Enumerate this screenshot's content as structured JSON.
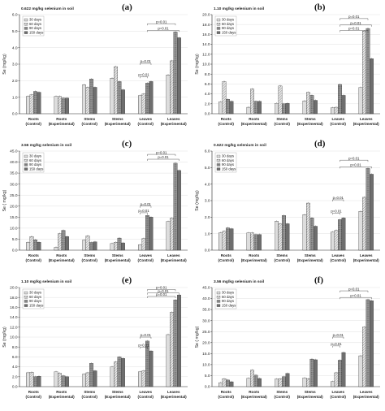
{
  "series_names": [
    "30 days",
    "60 days",
    "90 days",
    "150 days"
  ],
  "colors": {
    "s1": "#cfcfcf",
    "s2": "#e6e6e6",
    "s3": "#9a9a9a",
    "s4": "#6e6e6e",
    "axis": "#222222",
    "grid": "#d9d9d9",
    "bracket": "#333333"
  },
  "chart_data": [
    {
      "panel_label": "(a)",
      "type": "bar",
      "title": "0.622 mg/kg selenium in soil",
      "ylabel": "Se (mg/kg)",
      "ylim": [
        0,
        6
      ],
      "yticks": [
        0.0,
        1.0,
        2.0,
        3.0,
        4.0,
        5.0,
        6.0
      ],
      "ytick_labels": [
        "0.0",
        "1.0",
        "2.0",
        "3.0",
        "4.0",
        "5.0",
        "6.0"
      ],
      "grid": true,
      "legend": "top-left",
      "categories": [
        [
          "Roots",
          "(Control)"
        ],
        [
          "Roots",
          "(Experimental)"
        ],
        [
          "Stems",
          "(Control)"
        ],
        [
          "Stems",
          "(Experimental)"
        ],
        [
          "Leaves",
          "(Control)"
        ],
        [
          "Leaves",
          "(Experimental)"
        ]
      ],
      "series": [
        {
          "name": "30 days",
          "values": [
            1.05,
            1.05,
            1.75,
            2.15,
            1.1,
            2.35
          ]
        },
        {
          "name": "60 days",
          "values": [
            1.15,
            1.05,
            1.6,
            2.85,
            1.2,
            3.2
          ]
        },
        {
          "name": "90 days",
          "values": [
            1.35,
            0.95,
            2.1,
            1.95,
            1.85,
            4.95
          ]
        },
        {
          "name": "150 days",
          "values": [
            1.3,
            0.95,
            1.6,
            1.45,
            1.95,
            4.6
          ]
        }
      ],
      "brackets": [
        {
          "from": 4,
          "to": 5,
          "label": "p=0.01",
          "y": 5.45
        },
        {
          "from": 4,
          "to": 5,
          "label": "p=0.01",
          "y": 5.05
        },
        {
          "from": 4,
          "to": 4,
          "span": [
            0,
            3
          ],
          "label": "p=0.01",
          "y": 3.05
        },
        {
          "from": 4,
          "to": 4,
          "span": [
            0,
            2
          ],
          "label": "p=0.01",
          "y": 2.25
        }
      ]
    },
    {
      "panel_label": "(b)",
      "type": "bar",
      "title": "1.10 mg/kg selenium in soil",
      "ylabel": "Se (mg/kg)",
      "ylim": [
        0,
        20
      ],
      "yticks": [
        0,
        2,
        4,
        6,
        8,
        10,
        12,
        14,
        16,
        18,
        20
      ],
      "ytick_labels": [
        "0.0",
        "2.0",
        "4.0",
        "6.0",
        "8.0",
        "10.0",
        "12.0",
        "14.0",
        "16.0",
        "18.0",
        "20.0"
      ],
      "grid": true,
      "legend": "top-left",
      "categories": [
        [
          "Roots",
          "(Control)"
        ],
        [
          "Roots",
          "(Experimental)"
        ],
        [
          "Stems",
          "(Control)"
        ],
        [
          "Stems",
          "(Experimental)"
        ],
        [
          "Leaves",
          "(Control)"
        ],
        [
          "Leaves",
          "(Experimental)"
        ]
      ],
      "series": [
        {
          "name": "30 days",
          "values": [
            2.4,
            1.3,
            2.1,
            2.6,
            1.2,
            5.3
          ]
        },
        {
          "name": "60 days",
          "values": [
            6.5,
            5.0,
            5.6,
            4.3,
            1.3,
            16.7
          ]
        },
        {
          "name": "90 days",
          "values": [
            2.9,
            2.5,
            2.0,
            3.7,
            5.9,
            17.2
          ]
        },
        {
          "name": "150 days",
          "values": [
            2.5,
            2.5,
            2.1,
            2.7,
            3.7,
            11.1
          ]
        }
      ],
      "brackets": [
        {
          "from": 4,
          "to": 5,
          "label": "p=0.01",
          "y": 19.2
        },
        {
          "from": 4,
          "to": 5,
          "label": "p=0.01",
          "y": 17.9
        },
        {
          "from": 4,
          "to": 5,
          "label": "p=0.01",
          "y": 16.8
        }
      ]
    },
    {
      "panel_label": "(c)",
      "type": "bar",
      "title": "3.56 mg/kg selenium in soil",
      "ylabel": "Se ( mg/kg)",
      "ylim": [
        0,
        45
      ],
      "yticks": [
        0,
        5,
        10,
        15,
        20,
        25,
        30,
        35,
        40,
        45
      ],
      "ytick_labels": [
        "0.0",
        "5.0",
        "10.0",
        "15.0",
        "20.0",
        "25.0",
        "30.0",
        "35.0",
        "40.0",
        "45.0"
      ],
      "grid": true,
      "legend": "top-left",
      "categories": [
        [
          "Roots",
          "(Control)"
        ],
        [
          "Roots",
          "(Experimental)"
        ],
        [
          "Stems",
          "(Control)"
        ],
        [
          "Stems",
          "(Experimental)"
        ],
        [
          "Leaves",
          "(Control)"
        ],
        [
          "Leaves",
          "(Experimental)"
        ]
      ],
      "series": [
        {
          "name": "30 days",
          "values": [
            3.5,
            1.3,
            4.5,
            3.0,
            2.5,
            13.0
          ]
        },
        {
          "name": "60 days",
          "values": [
            6.2,
            7.5,
            6.5,
            3.6,
            5.3,
            14.5
          ]
        },
        {
          "name": "90 days",
          "values": [
            4.7,
            9.0,
            3.5,
            5.5,
            15.8,
            39.5
          ]
        },
        {
          "name": "150 days",
          "values": [
            3.6,
            6.2,
            3.8,
            3.3,
            15.0,
            36.2
          ]
        }
      ],
      "brackets": [
        {
          "from": 4,
          "to": 5,
          "label": "p=0.01",
          "y": 43.5
        },
        {
          "from": 4,
          "to": 5,
          "label": "p=0.01",
          "y": 41.3
        },
        {
          "from": 4,
          "to": 4,
          "span": [
            0,
            3
          ],
          "label": "p=0.01",
          "y": 20.0
        },
        {
          "from": 4,
          "to": 4,
          "span": [
            0,
            2
          ],
          "label": "p=0.01",
          "y": 17.0
        }
      ]
    },
    {
      "panel_label": "(d)",
      "type": "bar",
      "title": "0.622 mg/kg selenium in soil",
      "ylabel": "Se (mg/kg)",
      "ylim": [
        0,
        6
      ],
      "yticks": [
        0.0,
        1.0,
        2.0,
        3.0,
        4.0,
        5.0,
        6.0
      ],
      "ytick_labels": [
        "0.0",
        "1.0",
        "2.0",
        "3.0",
        "4.0",
        "5.0",
        "6.0"
      ],
      "grid": true,
      "legend": "top-left",
      "categories": [
        [
          "Roots",
          "(Control)"
        ],
        [
          "Roots",
          "(Experimental)"
        ],
        [
          "Stems",
          "(Control)"
        ],
        [
          "Stems",
          "(Experimental)"
        ],
        [
          "Leaves",
          "(Control)"
        ],
        [
          "Leaves",
          "(Experimental)"
        ]
      ],
      "series": [
        {
          "name": "30 days",
          "values": [
            1.05,
            1.05,
            1.75,
            2.15,
            1.1,
            2.35
          ]
        },
        {
          "name": "60 days",
          "values": [
            1.15,
            1.05,
            1.6,
            2.85,
            1.2,
            3.2
          ]
        },
        {
          "name": "90 days",
          "values": [
            1.35,
            0.95,
            2.1,
            1.95,
            1.85,
            4.95
          ]
        },
        {
          "name": "150 days",
          "values": [
            1.3,
            0.95,
            1.6,
            1.45,
            1.95,
            4.6
          ]
        }
      ],
      "brackets": [
        {
          "from": 4,
          "to": 5,
          "label": "p=0.01",
          "y": 5.45
        },
        {
          "from": 4,
          "to": 5,
          "label": "p=0.01",
          "y": 5.05
        },
        {
          "from": 4,
          "to": 4,
          "span": [
            0,
            3
          ],
          "label": "p=0.01",
          "y": 3.05
        },
        {
          "from": 4,
          "to": 4,
          "span": [
            0,
            2
          ],
          "label": "p=0.01",
          "y": 2.25
        }
      ]
    },
    {
      "panel_label": "(e)",
      "type": "bar",
      "title": "1.10 mg/kg selenium in soil",
      "ylabel": "Se (mg/kg)",
      "ylim": [
        0,
        20
      ],
      "yticks": [
        0,
        2,
        4,
        6,
        8,
        10,
        12,
        14,
        16,
        18,
        20
      ],
      "ytick_labels": [
        "0.0",
        "2.0",
        "4.0",
        "6.0",
        "8.0",
        "10.0",
        "12.0",
        "14.0",
        "16.0",
        "18.0",
        "20.0"
      ],
      "grid": true,
      "legend": "top-left",
      "categories": [
        [
          "Roots",
          "(Control)"
        ],
        [
          "Roots",
          "(Experimental)"
        ],
        [
          "Stems",
          "(Control)"
        ],
        [
          "Stems",
          "(Experimental)"
        ],
        [
          "Leaves",
          "(Control)"
        ],
        [
          "Leaves",
          "(Experimental)"
        ]
      ],
      "series": [
        {
          "name": "30 days",
          "values": [
            2.8,
            3.0,
            2.5,
            4.0,
            3.0,
            10.5
          ]
        },
        {
          "name": "60 days",
          "values": [
            2.9,
            2.7,
            2.8,
            5.0,
            3.2,
            15.0
          ]
        },
        {
          "name": "90 days",
          "values": [
            2.0,
            2.2,
            4.7,
            6.0,
            9.2,
            17.5
          ]
        },
        {
          "name": "150 days",
          "values": [
            2.1,
            2.0,
            3.2,
            5.7,
            7.2,
            18.5
          ]
        }
      ],
      "brackets": [
        {
          "from": 4,
          "to": 5,
          "label": "p=0.01",
          "y": 19.6
        },
        {
          "from": 4,
          "to": 5,
          "label": "p=0.01",
          "y": 18.9
        },
        {
          "from": 4,
          "to": 5,
          "label": "p=0.01",
          "y": 18.2
        },
        {
          "from": 4,
          "to": 4,
          "span": [
            0,
            3
          ],
          "label": "p=0.01",
          "y": 10.0
        },
        {
          "from": 4,
          "to": 4,
          "span": [
            0,
            2
          ],
          "label": "p=0.01",
          "y": 8.0
        }
      ]
    },
    {
      "panel_label": "(f)",
      "type": "bar",
      "title": "3.56 mg/kg selenium in soil",
      "ylabel": "Se ( mg/kg)",
      "ylim": [
        0,
        45
      ],
      "yticks": [
        0,
        5,
        10,
        15,
        20,
        25,
        30,
        35,
        40,
        45
      ],
      "ytick_labels": [
        "0.0",
        "5.0",
        "10.0",
        "15.0",
        "20.0",
        "25.0",
        "30.0",
        "35.0",
        "40.0",
        "45.0"
      ],
      "grid": true,
      "legend": "top-left",
      "categories": [
        [
          "Roots",
          "(Control)"
        ],
        [
          "Roots",
          "(Experimental)"
        ],
        [
          "Stems",
          "(Control)"
        ],
        [
          "Stems",
          "(Experimental)"
        ],
        [
          "Leaves",
          "(Control)"
        ],
        [
          "Leaves",
          "(Experimental)"
        ]
      ],
      "series": [
        {
          "name": "30 days",
          "values": [
            1.8,
            3.8,
            3.4,
            4.0,
            2.3,
            14.0
          ]
        },
        {
          "name": "60 days",
          "values": [
            3.6,
            7.5,
            3.6,
            3.6,
            6.3,
            27.0
          ]
        },
        {
          "name": "90 days",
          "values": [
            3.0,
            5.2,
            4.5,
            12.5,
            12.0,
            39.5
          ]
        },
        {
          "name": "150 days",
          "values": [
            2.2,
            3.7,
            6.0,
            12.2,
            15.5,
            39.0
          ]
        }
      ],
      "brackets": [
        {
          "from": 4,
          "to": 5,
          "label": "p=0.01",
          "y": 43.5
        },
        {
          "from": 4,
          "to": 5,
          "label": "p=0.01",
          "y": 40.5
        },
        {
          "from": 4,
          "to": 4,
          "span": [
            0,
            3
          ],
          "label": "p=0.01",
          "y": 22.5
        },
        {
          "from": 4,
          "to": 4,
          "span": [
            0,
            2
          ],
          "label": "p=0.01",
          "y": 18.5
        }
      ]
    }
  ]
}
